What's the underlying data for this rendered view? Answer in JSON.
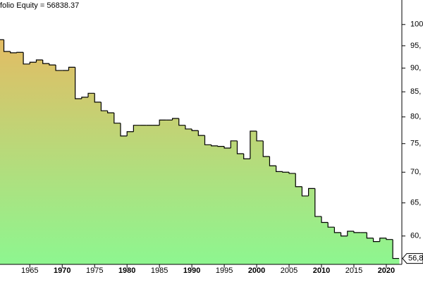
{
  "chart_data": {
    "type": "step-area",
    "title": "folio Equity = 56838.37",
    "x": [
      1960,
      1961,
      1962,
      1963,
      1964,
      1965,
      1966,
      1967,
      1968,
      1969,
      1970,
      1971,
      1972,
      1973,
      1974,
      1975,
      1976,
      1977,
      1978,
      1979,
      1980,
      1981,
      1982,
      1983,
      1984,
      1985,
      1986,
      1987,
      1988,
      1989,
      1990,
      1991,
      1992,
      1993,
      1994,
      1995,
      1996,
      1997,
      1998,
      1999,
      2000,
      2001,
      2002,
      2003,
      2004,
      2005,
      2006,
      2007,
      2008,
      2009,
      2010,
      2011,
      2012,
      2013,
      2014,
      2015,
      2016,
      2017,
      2018,
      2019,
      2020,
      2021
    ],
    "values": [
      96400,
      93700,
      93400,
      93500,
      90900,
      91300,
      91800,
      91000,
      90700,
      89500,
      89500,
      90200,
      83600,
      83900,
      84700,
      82900,
      81200,
      80800,
      78800,
      76400,
      77200,
      78400,
      78400,
      78400,
      78400,
      79400,
      79400,
      79700,
      78400,
      77700,
      77400,
      76500,
      74800,
      74600,
      74500,
      74200,
      75500,
      73200,
      72300,
      77300,
      75500,
      72700,
      71100,
      70100,
      70000,
      69800,
      67600,
      66100,
      67300,
      62900,
      62000,
      61300,
      60500,
      60000,
      60700,
      60500,
      60500,
      59700,
      59200,
      59700,
      59500,
      56838.37
    ],
    "last_label": "56,8",
    "line_color": "#000000",
    "gradient": [
      "#f2b25c",
      "#8ff58f"
    ],
    "log_scale": true,
    "xlim": [
      1960.4,
      2022.4
    ],
    "xticks": [
      1965,
      1970,
      1975,
      1980,
      1985,
      1990,
      1995,
      2000,
      2005,
      2010,
      2015,
      2020
    ],
    "ylim": [
      56700,
      106100
    ],
    "yticks": [
      {
        "value": 60000,
        "label": "60,"
      },
      {
        "value": 65000,
        "label": "65,"
      },
      {
        "value": 70000,
        "label": "70,"
      },
      {
        "value": 75000,
        "label": "75,"
      },
      {
        "value": 80000,
        "label": "80,"
      },
      {
        "value": 85000,
        "label": "85,"
      },
      {
        "value": 90000,
        "label": "90,"
      },
      {
        "value": 95000,
        "label": "95,"
      },
      {
        "value": 100000,
        "label": "100,"
      }
    ]
  }
}
